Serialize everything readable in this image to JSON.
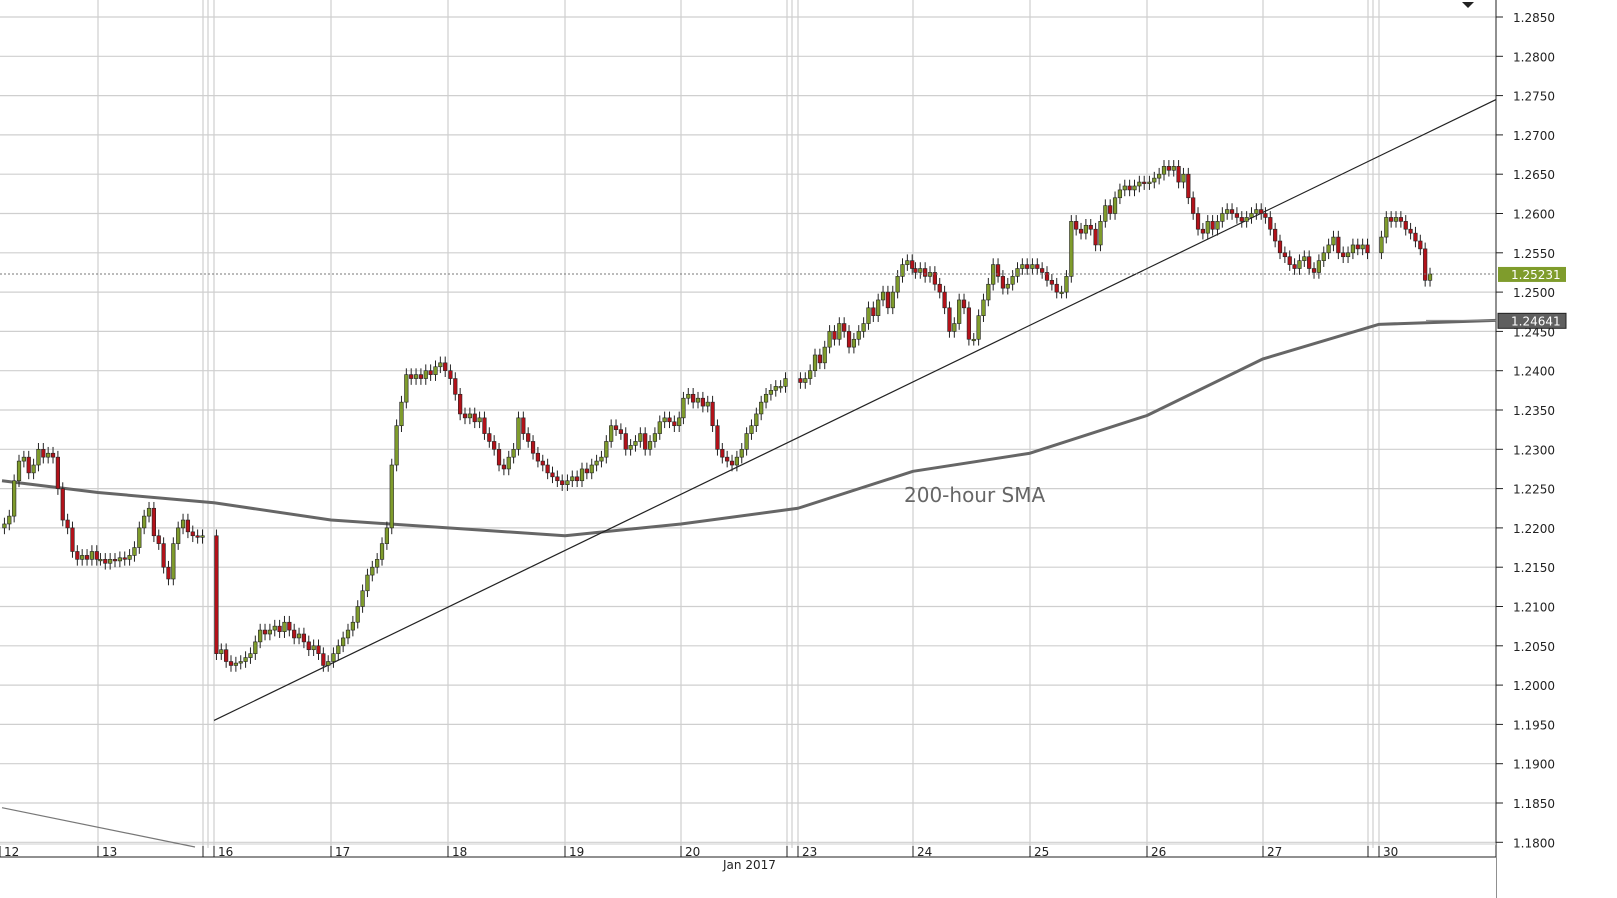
{
  "chart_data": {
    "type": "candlestick",
    "title": "",
    "xlabel": "",
    "ylabel": "",
    "ylim": [
      1.1785,
      1.287
    ],
    "grid": true,
    "month_label": "Jan 2017",
    "y_ticks": [
      "1.2850",
      "1.2800",
      "1.2750",
      "1.2700",
      "1.2650",
      "1.2600",
      "1.2550",
      "1.2500",
      "1.2450",
      "1.2400",
      "1.2350",
      "1.2300",
      "1.2250",
      "1.2200",
      "1.2150",
      "1.2100",
      "1.2050",
      "1.2000",
      "1.1950",
      "1.1900",
      "1.1850",
      "1.1800"
    ],
    "x_ticks": [
      "12",
      "13",
      "16",
      "17",
      "18",
      "19",
      "20",
      "23",
      "24",
      "25",
      "26",
      "27",
      "30"
    ],
    "colors": {
      "up": "#7f9c2c",
      "down": "#b3121a",
      "sma": "#666666",
      "trendline": "#222222",
      "last_price_label": "#7f9c2c",
      "sma_label": "#5f5f5f"
    },
    "hourly_closes": [
      {
        "day": "12",
        "closes": [
          1.2205,
          1.2215,
          1.226,
          1.2285,
          1.229,
          1.227,
          1.228,
          1.23,
          1.229,
          1.2295,
          1.229,
          1.225,
          1.221,
          1.22,
          1.217,
          1.216,
          1.2165,
          1.216,
          1.217,
          1.216
        ]
      },
      {
        "day": "13",
        "closes": [
          1.216,
          1.2155,
          1.216,
          1.2158,
          1.2162,
          1.216,
          1.2165,
          1.2175,
          1.22,
          1.2215,
          1.2225,
          1.219,
          1.218,
          1.215,
          1.2135,
          1.218,
          1.22,
          1.221,
          1.2195,
          1.219,
          1.2188,
          1.219
        ]
      },
      {
        "day": "16",
        "closes": [
          1.204,
          1.2045,
          1.203,
          1.2025,
          1.2028,
          1.203,
          1.2035,
          1.204,
          1.2055,
          1.207,
          1.2065,
          1.207,
          1.2075,
          1.2068,
          1.208,
          1.207,
          1.206,
          1.2065,
          1.2055,
          1.2045,
          1.205,
          1.204,
          1.2025,
          1.203
        ]
      },
      {
        "day": "17",
        "closes": [
          1.204,
          1.205,
          1.206,
          1.207,
          1.208,
          1.21,
          1.212,
          1.214,
          1.215,
          1.216,
          1.218,
          1.22,
          1.228,
          1.233,
          1.236,
          1.2395,
          1.239,
          1.2395,
          1.239,
          1.24,
          1.2395,
          1.2405,
          1.241,
          1.24
        ]
      },
      {
        "day": "18",
        "closes": [
          1.239,
          1.237,
          1.2345,
          1.234,
          1.2345,
          1.2335,
          1.234,
          1.232,
          1.231,
          1.23,
          1.228,
          1.2275,
          1.229,
          1.23,
          1.234,
          1.232,
          1.231,
          1.2295,
          1.2285,
          1.228,
          1.227,
          1.2265,
          1.226,
          1.2255
        ]
      },
      {
        "day": "19",
        "closes": [
          1.226,
          1.2265,
          1.226,
          1.2275,
          1.227,
          1.228,
          1.2285,
          1.229,
          1.231,
          1.233,
          1.2325,
          1.232,
          1.23,
          1.2305,
          1.231,
          1.232,
          1.23,
          1.231,
          1.232,
          1.2335,
          1.234,
          1.2335,
          1.233,
          1.234
        ]
      },
      {
        "day": "20",
        "closes": [
          1.2365,
          1.237,
          1.236,
          1.2365,
          1.2355,
          1.236,
          1.233,
          1.23,
          1.229,
          1.2285,
          1.228,
          1.229,
          1.23,
          1.232,
          1.233,
          1.2345,
          1.236,
          1.237,
          1.2375,
          1.238,
          1.238,
          1.239
        ]
      },
      {
        "day": "23",
        "closes": [
          1.2385,
          1.239,
          1.24,
          1.242,
          1.241,
          1.243,
          1.245,
          1.244,
          1.246,
          1.245,
          1.243,
          1.244,
          1.245,
          1.246,
          1.248,
          1.247,
          1.249,
          1.25,
          1.248,
          1.25,
          1.252,
          1.2535,
          1.254,
          1.253
        ]
      },
      {
        "day": "24",
        "closes": [
          1.2525,
          1.253,
          1.252,
          1.2525,
          1.251,
          1.25,
          1.248,
          1.245,
          1.246,
          1.249,
          1.248,
          1.244,
          1.244,
          1.247,
          1.249,
          1.251,
          1.2535,
          1.252,
          1.2505,
          1.251,
          1.252,
          1.253,
          1.2535,
          1.253
        ]
      },
      {
        "day": "25",
        "closes": [
          1.2535,
          1.253,
          1.2525,
          1.2515,
          1.251,
          1.25,
          1.25,
          1.252,
          1.259,
          1.258,
          1.2575,
          1.2585,
          1.258,
          1.256,
          1.259,
          1.261,
          1.26,
          1.262,
          1.263,
          1.2635,
          1.263,
          1.2635,
          1.264,
          1.2638
        ]
      },
      {
        "day": "26",
        "closes": [
          1.264,
          1.2645,
          1.265,
          1.266,
          1.2655,
          1.266,
          1.264,
          1.265,
          1.262,
          1.26,
          1.258,
          1.2575,
          1.259,
          1.258,
          1.259,
          1.26,
          1.2605,
          1.26,
          1.2595,
          1.259,
          1.2595,
          1.26,
          1.2605,
          1.26
        ]
      },
      {
        "day": "27",
        "closes": [
          1.2595,
          1.258,
          1.2565,
          1.255,
          1.2545,
          1.2535,
          1.253,
          1.254,
          1.2545,
          1.253,
          1.2525,
          1.254,
          1.255,
          1.256,
          1.257,
          1.255,
          1.2545,
          1.255,
          1.256,
          1.2555,
          1.256,
          1.255
        ]
      },
      {
        "day": "30",
        "closes": [
          1.257,
          1.2595,
          1.259,
          1.2595,
          1.259,
          1.258,
          1.2575,
          1.2565,
          1.2555,
          1.2515,
          1.2523
        ]
      }
    ],
    "sma_200h": {
      "name": "200-hour SMA",
      "points": [
        {
          "day": "12",
          "value": 1.226
        },
        {
          "day": "13",
          "value": 1.2245
        },
        {
          "day": "16",
          "value": 1.2232
        },
        {
          "day": "17",
          "value": 1.221
        },
        {
          "day": "18",
          "value": 1.22
        },
        {
          "day": "19",
          "value": 1.219
        },
        {
          "day": "20",
          "value": 1.2205
        },
        {
          "day": "23",
          "value": 1.2225
        },
        {
          "day": "24",
          "value": 1.2272
        },
        {
          "day": "25",
          "value": 1.2295
        },
        {
          "day": "26",
          "value": 1.2343
        },
        {
          "day": "27",
          "value": 1.2415
        },
        {
          "day": "30",
          "value": 1.2459
        },
        {
          "day": "30 end",
          "value": 1.2464
        }
      ]
    },
    "trendlines": [
      {
        "from": {
          "day": "16",
          "price": 1.1955
        },
        "to": {
          "day": "30 end",
          "price": 1.2745
        }
      },
      {
        "from": {
          "day": "12",
          "price": 1.1844
        },
        "to": {
          "day": "13 end",
          "price": 1.1794
        }
      }
    ],
    "last_price": "1.25231",
    "sma_price": "1.24641",
    "annotations": [
      "200-hour SMA"
    ]
  }
}
